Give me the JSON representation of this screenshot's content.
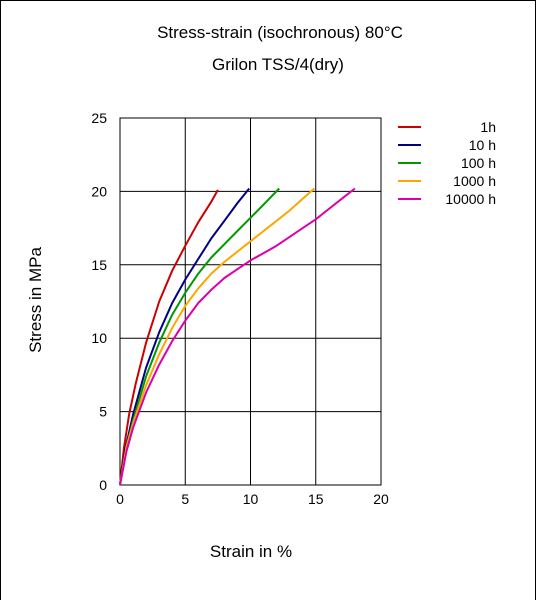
{
  "chart_data": {
    "type": "line",
    "title": "Stress-strain (isochronous) 80°C",
    "subtitle": "Grilon TSS/4(dry)",
    "xlabel": "Strain in %",
    "ylabel": "Stress in MPa",
    "xlim": [
      0,
      20
    ],
    "ylim": [
      0,
      25
    ],
    "xticks": [
      "0",
      "5",
      "10",
      "15",
      "20"
    ],
    "yticks": [
      "0",
      "5",
      "10",
      "15",
      "20",
      "25"
    ],
    "grid": true,
    "legend_position": "right",
    "series": [
      {
        "name": "1h",
        "color": "#cc0000",
        "x": [
          0,
          0.3,
          0.7,
          1.2,
          2.0,
          3.0,
          4.0,
          5.0,
          6.0,
          7.0,
          7.5
        ],
        "y": [
          0,
          2.5,
          4.8,
          6.9,
          9.7,
          12.5,
          14.6,
          16.3,
          17.9,
          19.3,
          20.1
        ]
      },
      {
        "name": "10 h",
        "color": "#000080",
        "x": [
          0,
          0.4,
          1.0,
          2.0,
          3.0,
          4.0,
          5.0,
          6.0,
          7.0,
          8.0,
          9.0,
          9.9
        ],
        "y": [
          0,
          2.4,
          4.8,
          8.0,
          10.4,
          12.4,
          14.0,
          15.4,
          16.8,
          18.0,
          19.2,
          20.2
        ]
      },
      {
        "name": "100 h",
        "color": "#009900",
        "x": [
          0,
          0.5,
          1.0,
          2.0,
          3.0,
          4.0,
          5.0,
          6.0,
          7.0,
          8.0,
          9.0,
          10.0,
          11.0,
          12.2
        ],
        "y": [
          0,
          2.6,
          4.4,
          7.4,
          9.7,
          11.6,
          13.1,
          14.4,
          15.5,
          16.4,
          17.3,
          18.2,
          19.1,
          20.2
        ]
      },
      {
        "name": "1000 h",
        "color": "#ffa500",
        "x": [
          0,
          0.5,
          1.0,
          2.0,
          3.0,
          4.0,
          5.0,
          6.0,
          7.0,
          8.0,
          9.0,
          10.0,
          11.0,
          12.0,
          13.0,
          14.0,
          14.9
        ],
        "y": [
          0,
          2.6,
          4.2,
          6.8,
          8.9,
          10.7,
          12.2,
          13.4,
          14.4,
          15.2,
          15.9,
          16.6,
          17.3,
          18.0,
          18.7,
          19.5,
          20.2
        ]
      },
      {
        "name": "10000 h",
        "color": "#dd00aa",
        "x": [
          0,
          0.5,
          1.0,
          2.0,
          3.0,
          4.0,
          5.0,
          6.0,
          7.0,
          8.0,
          9.0,
          10.0,
          11.0,
          12.0,
          13.0,
          14.0,
          15.0,
          16.0,
          17.0,
          18.0
        ],
        "y": [
          0,
          2.3,
          3.9,
          6.3,
          8.2,
          9.8,
          11.2,
          12.4,
          13.3,
          14.1,
          14.7,
          15.3,
          15.8,
          16.3,
          16.9,
          17.5,
          18.1,
          18.8,
          19.5,
          20.2
        ]
      }
    ]
  }
}
